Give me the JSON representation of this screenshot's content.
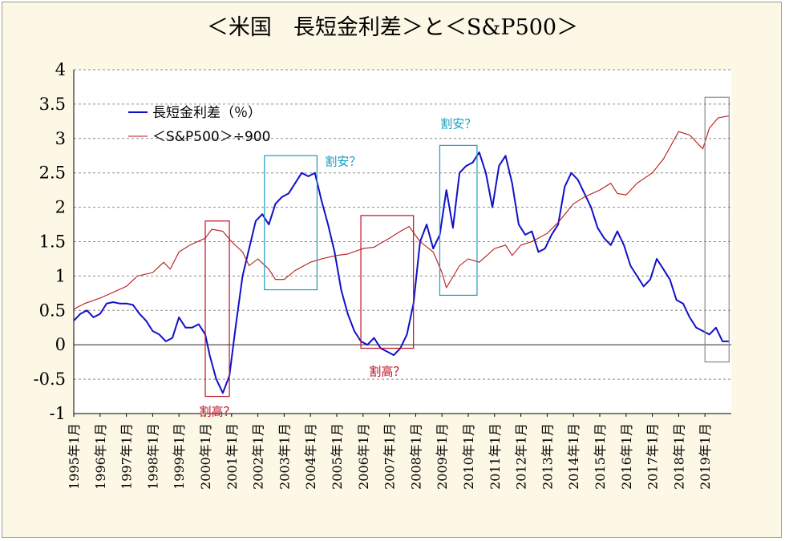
{
  "title": "＜米国　長短金利差＞と＜S&P500＞",
  "chart_data": {
    "type": "line",
    "x_start": "1995-01",
    "x_end": "2019-12",
    "x_ticks": [
      "1995年1月",
      "1996年1月",
      "1997年1月",
      "1998年1月",
      "1999年1月",
      "2000年1月",
      "2001年1月",
      "2002年1月",
      "2003年1月",
      "2004年1月",
      "2005年1月",
      "2006年1月",
      "2007年1月",
      "2008年1月",
      "2009年1月",
      "2010年1月",
      "2011年1月",
      "2012年1月",
      "2013年1月",
      "2014年1月",
      "2015年1月",
      "2016年1月",
      "2017年1月",
      "2018年1月",
      "2019年1月"
    ],
    "y_ticks": [
      "4",
      "3.5",
      "3",
      "2.5",
      "2",
      "1.5",
      "1",
      "0.5",
      "0",
      "-0.5",
      "-1"
    ],
    "ylim": [
      -1,
      4
    ],
    "grid": true,
    "legend_position": "top-left",
    "series": [
      {
        "name": "長短金利差（％）",
        "color": "#1010c8",
        "points": [
          [
            "1995-01",
            0.35
          ],
          [
            "1995-04",
            0.45
          ],
          [
            "1995-07",
            0.5
          ],
          [
            "1995-10",
            0.4
          ],
          [
            "1996-01",
            0.45
          ],
          [
            "1996-04",
            0.6
          ],
          [
            "1996-07",
            0.62
          ],
          [
            "1996-10",
            0.6
          ],
          [
            "1997-01",
            0.6
          ],
          [
            "1997-04",
            0.58
          ],
          [
            "1997-07",
            0.45
          ],
          [
            "1997-10",
            0.35
          ],
          [
            "1998-01",
            0.2
          ],
          [
            "1998-04",
            0.15
          ],
          [
            "1998-07",
            0.05
          ],
          [
            "1998-10",
            0.1
          ],
          [
            "1999-01",
            0.4
          ],
          [
            "1999-04",
            0.25
          ],
          [
            "1999-07",
            0.25
          ],
          [
            "1999-10",
            0.3
          ],
          [
            "2000-01",
            0.15
          ],
          [
            "2000-03",
            -0.15
          ],
          [
            "2000-06",
            -0.5
          ],
          [
            "2000-09",
            -0.7
          ],
          [
            "2000-12",
            -0.45
          ],
          [
            "2001-03",
            0.3
          ],
          [
            "2001-06",
            1.0
          ],
          [
            "2001-09",
            1.4
          ],
          [
            "2001-12",
            1.8
          ],
          [
            "2002-03",
            1.9
          ],
          [
            "2002-06",
            1.75
          ],
          [
            "2002-09",
            2.05
          ],
          [
            "2002-12",
            2.15
          ],
          [
            "2003-03",
            2.2
          ],
          [
            "2003-06",
            2.35
          ],
          [
            "2003-09",
            2.5
          ],
          [
            "2003-12",
            2.45
          ],
          [
            "2004-03",
            2.5
          ],
          [
            "2004-06",
            2.1
          ],
          [
            "2004-09",
            1.75
          ],
          [
            "2004-12",
            1.35
          ],
          [
            "2005-03",
            0.8
          ],
          [
            "2005-06",
            0.45
          ],
          [
            "2005-09",
            0.2
          ],
          [
            "2005-12",
            0.05
          ],
          [
            "2006-03",
            0.0
          ],
          [
            "2006-06",
            0.1
          ],
          [
            "2006-09",
            -0.05
          ],
          [
            "2006-12",
            -0.1
          ],
          [
            "2007-03",
            -0.15
          ],
          [
            "2007-06",
            -0.05
          ],
          [
            "2007-09",
            0.15
          ],
          [
            "2007-12",
            0.6
          ],
          [
            "2008-03",
            1.5
          ],
          [
            "2008-06",
            1.75
          ],
          [
            "2008-09",
            1.4
          ],
          [
            "2008-12",
            1.6
          ],
          [
            "2009-03",
            2.25
          ],
          [
            "2009-06",
            1.7
          ],
          [
            "2009-09",
            2.5
          ],
          [
            "2009-12",
            2.6
          ],
          [
            "2010-03",
            2.65
          ],
          [
            "2010-06",
            2.8
          ],
          [
            "2010-09",
            2.5
          ],
          [
            "2010-12",
            2.0
          ],
          [
            "2011-03",
            2.6
          ],
          [
            "2011-06",
            2.75
          ],
          [
            "2011-09",
            2.35
          ],
          [
            "2011-12",
            1.75
          ],
          [
            "2012-03",
            1.6
          ],
          [
            "2012-06",
            1.65
          ],
          [
            "2012-09",
            1.35
          ],
          [
            "2012-12",
            1.4
          ],
          [
            "2013-03",
            1.6
          ],
          [
            "2013-06",
            1.75
          ],
          [
            "2013-09",
            2.3
          ],
          [
            "2013-12",
            2.5
          ],
          [
            "2014-03",
            2.4
          ],
          [
            "2014-06",
            2.2
          ],
          [
            "2014-09",
            2.0
          ],
          [
            "2014-12",
            1.7
          ],
          [
            "2015-03",
            1.55
          ],
          [
            "2015-06",
            1.45
          ],
          [
            "2015-09",
            1.65
          ],
          [
            "2015-12",
            1.45
          ],
          [
            "2016-03",
            1.15
          ],
          [
            "2016-06",
            1.0
          ],
          [
            "2016-09",
            0.85
          ],
          [
            "2016-12",
            0.95
          ],
          [
            "2017-03",
            1.25
          ],
          [
            "2017-06",
            1.1
          ],
          [
            "2017-09",
            0.95
          ],
          [
            "2017-12",
            0.65
          ],
          [
            "2018-03",
            0.6
          ],
          [
            "2018-06",
            0.4
          ],
          [
            "2018-09",
            0.25
          ],
          [
            "2018-12",
            0.2
          ],
          [
            "2019-03",
            0.15
          ],
          [
            "2019-06",
            0.25
          ],
          [
            "2019-09",
            0.05
          ],
          [
            "2019-12",
            0.05
          ]
        ]
      },
      {
        "name": "＜S&P500＞÷900",
        "color": "#b81818",
        "points": [
          [
            "1995-01",
            0.52
          ],
          [
            "1995-06",
            0.6
          ],
          [
            "1996-01",
            0.68
          ],
          [
            "1996-06",
            0.75
          ],
          [
            "1997-01",
            0.85
          ],
          [
            "1997-06",
            1.0
          ],
          [
            "1998-01",
            1.05
          ],
          [
            "1998-06",
            1.2
          ],
          [
            "1998-09",
            1.1
          ],
          [
            "1999-01",
            1.35
          ],
          [
            "1999-06",
            1.45
          ],
          [
            "2000-01",
            1.55
          ],
          [
            "2000-04",
            1.68
          ],
          [
            "2000-09",
            1.65
          ],
          [
            "2001-01",
            1.5
          ],
          [
            "2001-06",
            1.35
          ],
          [
            "2001-09",
            1.15
          ],
          [
            "2002-01",
            1.25
          ],
          [
            "2002-06",
            1.1
          ],
          [
            "2002-09",
            0.95
          ],
          [
            "2003-01",
            0.95
          ],
          [
            "2003-06",
            1.08
          ],
          [
            "2004-01",
            1.2
          ],
          [
            "2004-06",
            1.25
          ],
          [
            "2005-01",
            1.3
          ],
          [
            "2005-06",
            1.32
          ],
          [
            "2006-01",
            1.4
          ],
          [
            "2006-06",
            1.42
          ],
          [
            "2007-01",
            1.55
          ],
          [
            "2007-06",
            1.65
          ],
          [
            "2007-10",
            1.72
          ],
          [
            "2008-03",
            1.5
          ],
          [
            "2008-09",
            1.35
          ],
          [
            "2009-01",
            1.05
          ],
          [
            "2009-03",
            0.83
          ],
          [
            "2009-09",
            1.15
          ],
          [
            "2010-01",
            1.25
          ],
          [
            "2010-06",
            1.2
          ],
          [
            "2011-01",
            1.4
          ],
          [
            "2011-06",
            1.45
          ],
          [
            "2011-09",
            1.3
          ],
          [
            "2012-01",
            1.45
          ],
          [
            "2012-06",
            1.5
          ],
          [
            "2013-01",
            1.62
          ],
          [
            "2013-06",
            1.78
          ],
          [
            "2014-01",
            2.05
          ],
          [
            "2014-06",
            2.15
          ],
          [
            "2015-01",
            2.25
          ],
          [
            "2015-06",
            2.35
          ],
          [
            "2015-09",
            2.2
          ],
          [
            "2016-01",
            2.18
          ],
          [
            "2016-06",
            2.35
          ],
          [
            "2017-01",
            2.5
          ],
          [
            "2017-06",
            2.7
          ],
          [
            "2018-01",
            3.1
          ],
          [
            "2018-06",
            3.05
          ],
          [
            "2018-12",
            2.85
          ],
          [
            "2019-03",
            3.15
          ],
          [
            "2019-07",
            3.3
          ],
          [
            "2019-12",
            3.33
          ]
        ]
      }
    ],
    "annotations": [
      {
        "label": "割高？",
        "color": "#c01020",
        "box": [
          "2000-01",
          "2000-12",
          -0.75,
          1.8
        ]
      },
      {
        "label": "割安？",
        "color": "#1a9ec0",
        "box": [
          "2002-04",
          "2004-04",
          0.8,
          2.75
        ]
      },
      {
        "label": "割高？",
        "color": "#c01020",
        "box": [
          "2005-12",
          "2007-12",
          -0.05,
          1.88
        ]
      },
      {
        "label": "割安？",
        "color": "#1a9ec0",
        "box": [
          "2008-12",
          "2010-05",
          0.72,
          2.9
        ]
      },
      {
        "label": "",
        "color": "#888888",
        "box": [
          "2019-01",
          "2019-12",
          -0.25,
          3.6
        ]
      }
    ]
  }
}
